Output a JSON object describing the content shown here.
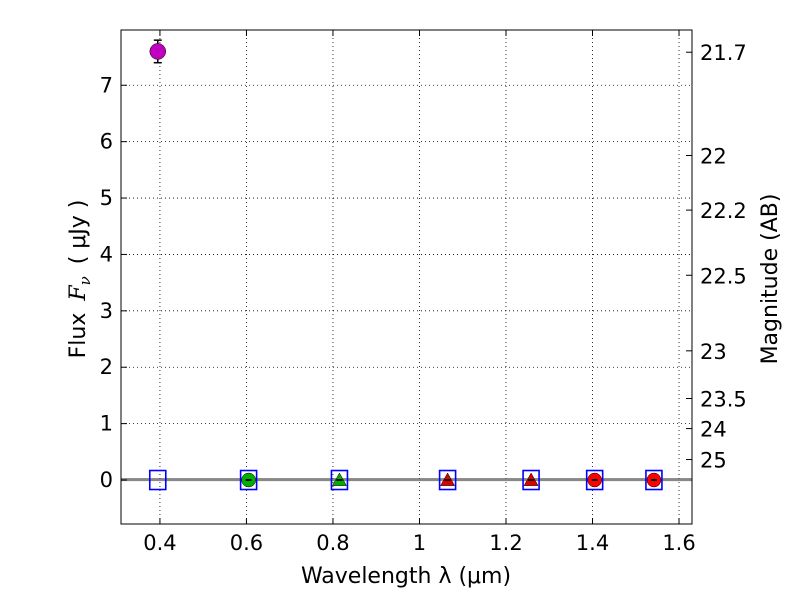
{
  "chart_data": {
    "type": "scatter",
    "xlabel": "Wavelength  λ (μm)",
    "ylabel_text": "Flux",
    "ylabel_var": "F",
    "ylabel_sub": "ν",
    "ylabel_unit": "( μJy )",
    "y2label": "Magnitude (AB)",
    "xlim": [
      0.31,
      1.63
    ],
    "ylim": [
      -0.78,
      7.98
    ],
    "grid": true,
    "x_ticks": [
      0.4,
      0.6,
      0.8,
      1.0,
      1.2,
      1.4,
      1.6
    ],
    "x_tick_labels": [
      "0.4",
      "0.6",
      "0.8",
      "1",
      "1.2",
      "1.4",
      "1.6"
    ],
    "y_ticks": [
      0,
      1,
      2,
      3,
      4,
      5,
      6,
      7
    ],
    "y_tick_labels": [
      "0",
      "1",
      "2",
      "3",
      "4",
      "5",
      "6",
      "7"
    ],
    "mag_ticks": [
      21.7,
      22,
      22.2,
      22.5,
      23,
      23.5,
      24,
      25
    ],
    "mag_tick_labels": [
      "21.7",
      "22",
      "22.2",
      "22.5",
      "23",
      "23.5",
      "24",
      "25"
    ],
    "baseline": {
      "x": [
        0.31,
        1.63
      ],
      "y": [
        0,
        0
      ],
      "color": "#888888"
    },
    "model_points": {
      "name": "model bands",
      "marker": "square-open",
      "color": "#0000ff",
      "x": [
        0.395,
        0.605,
        0.815,
        1.065,
        1.258,
        1.405,
        1.542
      ],
      "y": [
        0,
        0,
        0,
        0,
        0,
        0,
        0
      ]
    },
    "detections": [
      {
        "x": 0.395,
        "y": 7.6,
        "yerr": 0.2,
        "marker": "circle",
        "color": "#bf00bf"
      }
    ],
    "upper_limits": [
      {
        "x": 0.605,
        "y": 0,
        "marker": "circle",
        "color": "#00b000"
      },
      {
        "x": 0.815,
        "y": 0,
        "marker": "triangle",
        "color": "#00b000"
      },
      {
        "x": 1.065,
        "y": 0,
        "marker": "triangle",
        "color": "#e00000"
      },
      {
        "x": 1.258,
        "y": 0,
        "marker": "triangle",
        "color": "#e00000"
      },
      {
        "x": 1.405,
        "y": 0,
        "marker": "circle",
        "color": "#ff0000"
      },
      {
        "x": 1.542,
        "y": 0,
        "marker": "circle",
        "color": "#ff0000"
      }
    ]
  }
}
